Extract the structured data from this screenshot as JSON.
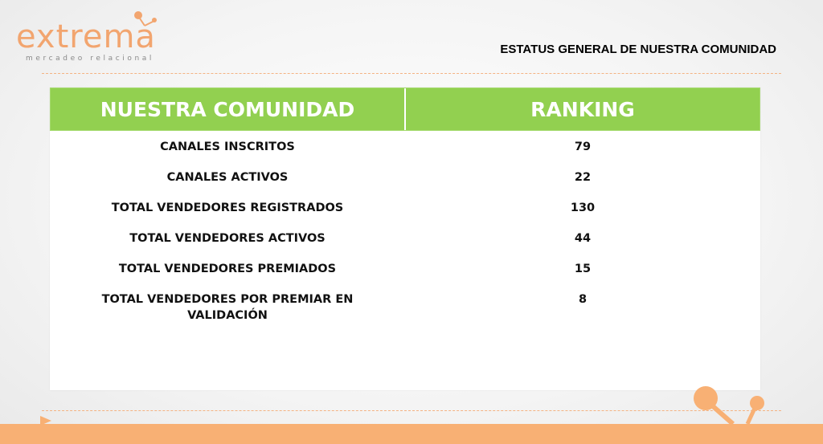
{
  "brand": {
    "name": "extrema",
    "tagline": "mercadeo relacional",
    "accent_color": "#f2a56f",
    "green_color": "#92d050"
  },
  "page": {
    "heading": "ESTATUS GENERAL DE NUESTRA COMUNIDAD"
  },
  "table": {
    "headers": [
      "NUESTRA COMUNIDAD",
      "RANKING"
    ],
    "rows": [
      {
        "label": "CANALES INSCRITOS",
        "value": "79"
      },
      {
        "label": "CANALES ACTIVOS",
        "value": "22"
      },
      {
        "label": "TOTAL VENDEDORES REGISTRADOS",
        "value": "130"
      },
      {
        "label": "TOTAL VENDEDORES ACTIVOS",
        "value": "44"
      },
      {
        "label": "TOTAL VENDEDORES PREMIADOS",
        "value": "15"
      },
      {
        "label": "TOTAL VENDEDORES POR PREMIAR EN VALIDACIÓN",
        "value": "8"
      }
    ]
  },
  "icons": {
    "logo_molecule": "molecule-icon",
    "footer_arrow": "triangle-arrow-icon",
    "footer_molecule": "molecule-decoration-icon"
  }
}
